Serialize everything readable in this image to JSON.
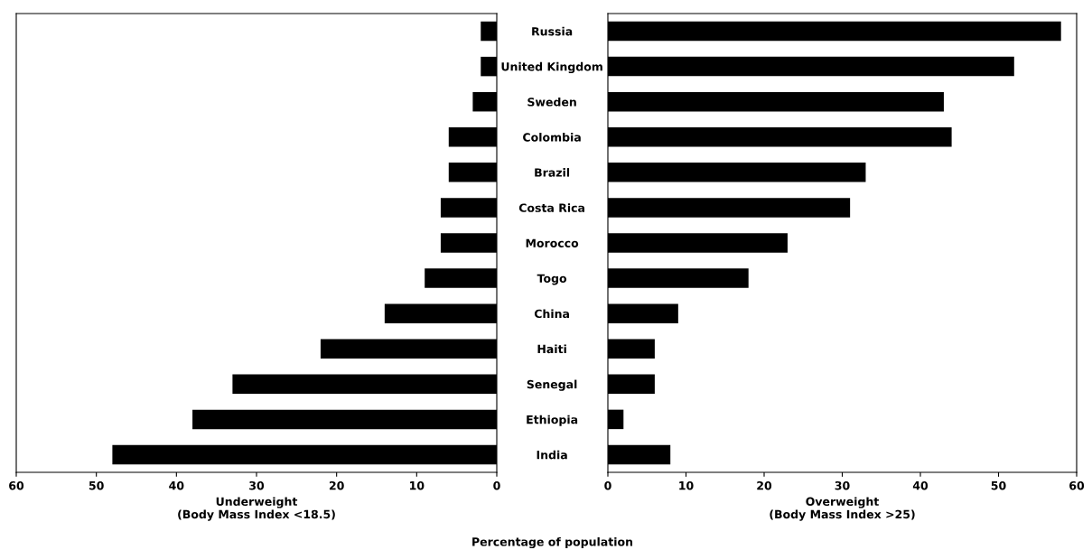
{
  "chart_data": [
    {
      "type": "bar",
      "orientation": "horizontal",
      "categories": [
        "Russia",
        "United Kingdom",
        "Sweden",
        "Colombia",
        "Brazil",
        "Costa Rica",
        "Morocco",
        "Togo",
        "China",
        "Haiti",
        "Senegal",
        "Ethiopia",
        "India"
      ],
      "series": [
        {
          "color": "#000000",
          "values": [
            2,
            2,
            3,
            6,
            6,
            7,
            7,
            9,
            14,
            22,
            33,
            38,
            48
          ]
        }
      ],
      "xlim": [
        60,
        0
      ],
      "xticks": [
        60,
        50,
        40,
        30,
        20,
        10,
        0
      ],
      "xlabel": "Underweight\n(Body Mass Index <18.5)",
      "grid": false,
      "legend": false,
      "annotations": [
        "Percentage of population"
      ]
    },
    {
      "type": "bar",
      "orientation": "horizontal",
      "categories": [
        null,
        null,
        null,
        null,
        null,
        null,
        null,
        null,
        null,
        null,
        null,
        null,
        null
      ],
      "series": [
        {
          "color": "#000000",
          "values": [
            58,
            52,
            43,
            44,
            33,
            31,
            23,
            18,
            9,
            6,
            6,
            2,
            8
          ]
        }
      ],
      "xlim": [
        0,
        60
      ],
      "xticks": [
        0,
        10,
        20,
        30,
        40,
        50,
        60
      ],
      "xlabel": "Overweight\n(Body Mass Index >25)",
      "grid": false,
      "legend": false,
      "tick_labels": "x"
    }
  ]
}
